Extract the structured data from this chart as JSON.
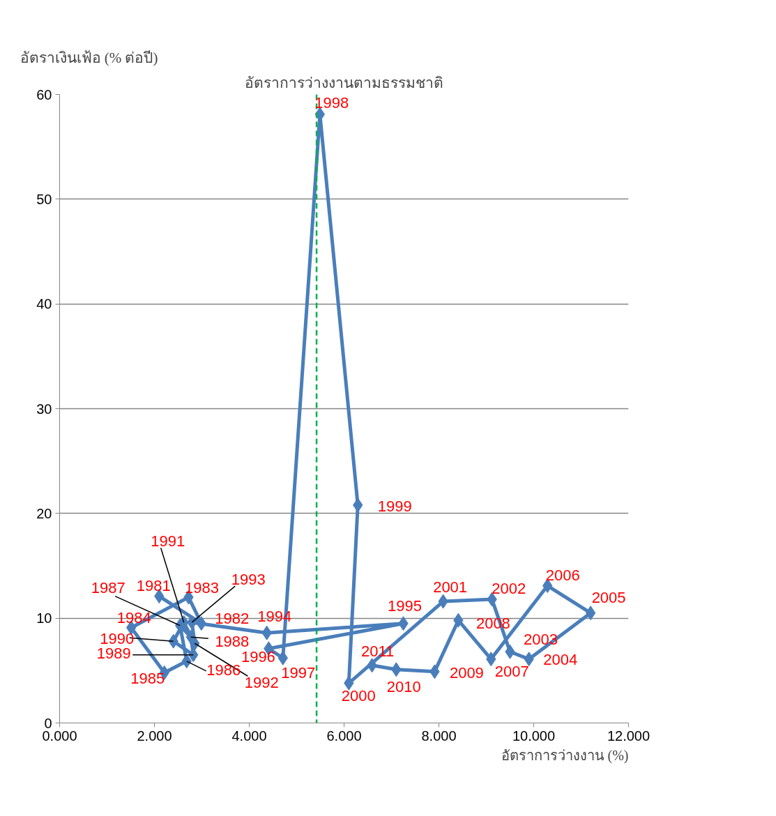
{
  "chart_data": {
    "type": "line",
    "xlabel": "อัตราการว่างงาน (%)",
    "ylabel": "อัตราเงินเฟ้อ (% ต่อปี)",
    "x": [
      2.1,
      2.99,
      2.72,
      1.51,
      2.21,
      2.68,
      2.54,
      2.77,
      2.82,
      2.4,
      2.62,
      2.85,
      2.79,
      4.37,
      7.25,
      4.41,
      4.71,
      5.49,
      6.29,
      6.1,
      8.09,
      9.12,
      9.5,
      9.9,
      11.2,
      10.29,
      9.1,
      8.41,
      7.91,
      7.1,
      6.59
    ],
    "series": [
      {
        "color": "#4a7ebb",
        "values": [
          12.1,
          9.5,
          12.0,
          9.1,
          4.8,
          5.9,
          9.3,
          8.2,
          6.5,
          7.8,
          9.6,
          7.6,
          9.6,
          8.6,
          9.5,
          7.1,
          6.2,
          58.1,
          20.8,
          3.8,
          11.6,
          11.8,
          6.8,
          6.1,
          10.5,
          13.1,
          6.1,
          9.8,
          4.9,
          5.1,
          5.5
        ]
      }
    ],
    "marker": "diamond",
    "xlim": [
      0,
      12
    ],
    "xticks": [
      {
        "value": 0,
        "label": "0.000"
      },
      {
        "value": 2,
        "label": "2.000"
      },
      {
        "value": 4,
        "label": "4.000"
      },
      {
        "value": 6,
        "label": "6.000"
      },
      {
        "value": 8,
        "label": "8.000"
      },
      {
        "value": 10,
        "label": "10.000"
      },
      {
        "value": 12,
        "label": "12.000"
      }
    ],
    "ylim": [
      0,
      60
    ],
    "yticks": [
      0,
      10,
      20,
      30,
      40,
      50,
      60
    ],
    "grid": "y",
    "ref_lines": [
      {
        "axis": "x",
        "value": 5.42,
        "label": "อัตราการว่างงานตามธรรมชาติ",
        "color": "#00b050",
        "line_style": "dashed"
      }
    ],
    "annotations": [
      {
        "text": "1981",
        "x": 2.1,
        "y": 12.1
      },
      {
        "text": "1982",
        "x": 2.99,
        "y": 9.5
      },
      {
        "text": "1983",
        "x": 2.72,
        "y": 12.0
      },
      {
        "text": "1984",
        "x": 1.51,
        "y": 9.1
      },
      {
        "text": "1985",
        "x": 2.21,
        "y": 4.8
      },
      {
        "text": "1986",
        "x": 2.68,
        "y": 5.9
      },
      {
        "text": "1987",
        "x": 2.54,
        "y": 9.3
      },
      {
        "text": "1988",
        "x": 2.77,
        "y": 8.2
      },
      {
        "text": "1989",
        "x": 2.82,
        "y": 6.5
      },
      {
        "text": "1990",
        "x": 2.4,
        "y": 7.8
      },
      {
        "text": "1991",
        "x": 2.62,
        "y": 9.6
      },
      {
        "text": "1992",
        "x": 2.85,
        "y": 7.6
      },
      {
        "text": "1993",
        "x": 2.79,
        "y": 9.6
      },
      {
        "text": "1994",
        "x": 4.37,
        "y": 8.6
      },
      {
        "text": "1995",
        "x": 7.25,
        "y": 9.5
      },
      {
        "text": "1996",
        "x": 4.41,
        "y": 7.1
      },
      {
        "text": "1997",
        "x": 4.71,
        "y": 6.2
      },
      {
        "text": "1998",
        "x": 5.49,
        "y": 58.1
      },
      {
        "text": "1999",
        "x": 6.29,
        "y": 20.8
      },
      {
        "text": "2000",
        "x": 6.1,
        "y": 3.8
      },
      {
        "text": "2001",
        "x": 8.09,
        "y": 11.6
      },
      {
        "text": "2002",
        "x": 9.12,
        "y": 11.8
      },
      {
        "text": "2003",
        "x": 9.5,
        "y": 6.8
      },
      {
        "text": "2004",
        "x": 9.9,
        "y": 6.1
      },
      {
        "text": "2005",
        "x": 11.2,
        "y": 10.5
      },
      {
        "text": "2006",
        "x": 10.29,
        "y": 13.1
      },
      {
        "text": "2007",
        "x": 9.1,
        "y": 6.1
      },
      {
        "text": "2008",
        "x": 8.41,
        "y": 9.8
      },
      {
        "text": "2009",
        "x": 7.91,
        "y": 4.9
      },
      {
        "text": "2010",
        "x": 7.1,
        "y": 5.1
      },
      {
        "text": "2011",
        "x": 6.59,
        "y": 5.5
      }
    ]
  }
}
